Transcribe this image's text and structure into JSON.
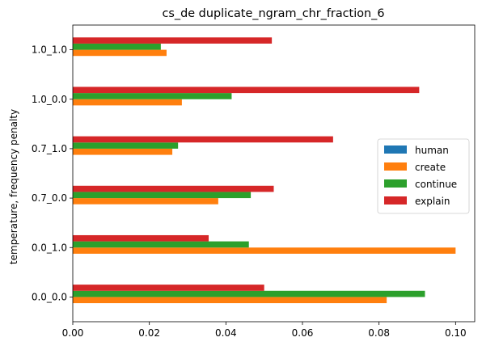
{
  "chart_data": {
    "type": "bar",
    "orientation": "horizontal",
    "title": "cs_de duplicate_ngram_chr_fraction_6",
    "xlabel": "",
    "ylabel": "temperature, frequency penalty",
    "xlim": [
      0.0,
      0.105
    ],
    "xticks": [
      "0.00",
      "0.02",
      "0.04",
      "0.06",
      "0.08",
      "0.10"
    ],
    "xtick_values": [
      0.0,
      0.02,
      0.04,
      0.06,
      0.08,
      0.1
    ],
    "categories": [
      "0.0_0.0",
      "0.0_1.0",
      "0.7_0.0",
      "0.7_1.0",
      "1.0_0.0",
      "1.0_1.0"
    ],
    "series": [
      {
        "name": "human",
        "color": "#1f77b4",
        "values": [
          0.0,
          0.0,
          0.0,
          0.0,
          0.0,
          0.0
        ]
      },
      {
        "name": "create",
        "color": "#ff7f0e",
        "values": [
          0.082,
          0.1,
          0.038,
          0.026,
          0.0285,
          0.0245
        ]
      },
      {
        "name": "continue",
        "color": "#2ca02c",
        "values": [
          0.092,
          0.046,
          0.0465,
          0.0275,
          0.0415,
          0.023
        ]
      },
      {
        "name": "explain",
        "color": "#d62728",
        "values": [
          0.05,
          0.0355,
          0.0525,
          0.068,
          0.0905,
          0.052
        ]
      }
    ],
    "legend_position": "center-right",
    "grid": false
  }
}
